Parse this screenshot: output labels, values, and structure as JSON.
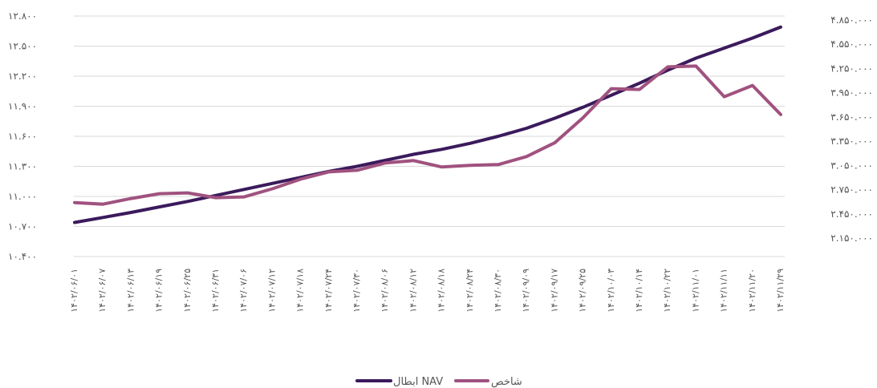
{
  "chart_data": {
    "type": "line",
    "title": "",
    "xlabel": "",
    "ylabel": "",
    "grid": true,
    "legend_placement": "bottom",
    "x": [
      "۱۴۰۲/۰۶/۰۱",
      "۱۴۰۲/۰۶/۰۷",
      "۱۴۰۲/۰۶/۱۳",
      "۱۴۰۲/۰۶/۱۹",
      "۱۴۰۲/۰۶/۲۵",
      "۱۴۰۲/۰۶/۳۱",
      "۱۴۰۲/۰۷/۰۶",
      "۱۴۰۲/۰۷/۱۲",
      "۱۴۰۲/۰۷/۱۸",
      "۱۴۰۲/۰۷/۲۴",
      "۱۴۰۲/۰۷/۳۰",
      "۱۴۰۲/۰۸/۰۶",
      "۱۴۰۲/۰۸/۱۲",
      "۱۴۰۲/۰۸/۱۸",
      "۱۴۰۲/۰۸/۲۴",
      "۱۴۰۲/۰۸/۳۰",
      "۱۴۰۲/۰۹/۰۹",
      "۱۴۰۲/۰۹/۱۷",
      "۱۴۰۲/۰۹/۲۵",
      "۱۴۰۲/۱۰/۰۳",
      "۱۴۰۲/۱۰/۱۴",
      "۱۴۰۲/۱۰/۲۲",
      "۱۴۰۲/۱۱/۰۱",
      "۱۴۰۲/۱۱/۱۱",
      "۱۴۰۲/۱۱/۲۰",
      "۱۴۰۲/۱۱/۲۹"
    ],
    "y_left": {
      "ticks": [
        "۱۰.۴۰۰",
        "۱۰.۷۰۰",
        "۱۱.۰۰۰",
        "۱۱.۳۰۰",
        "۱۱.۶۰۰",
        "۱۱.۹۰۰",
        "۱۲.۲۰۰",
        "۱۲.۵۰۰",
        "۱۲.۸۰۰"
      ],
      "range": [
        10400,
        12800
      ]
    },
    "y_right": {
      "ticks": [
        "۲.۱۵۰.۰۰۰",
        "۲.۴۵۰.۰۰۰",
        "۲.۷۵۰.۰۰۰",
        "۳.۰۵۰.۰۰۰",
        "۳.۳۵۰.۰۰۰",
        "۳.۶۵۰.۰۰۰",
        "۳.۹۵۰.۰۰۰",
        "۴.۲۵۰.۰۰۰",
        "۴.۵۵۰.۰۰۰",
        "۴.۸۵۰.۰۰۰"
      ],
      "range": [
        2150000,
        4850000
      ]
    },
    "series": [
      {
        "name": "ابطال NAV",
        "axis": "left",
        "color": "#3b1a5c",
        "values": [
          10740,
          10790,
          10840,
          10895,
          10950,
          11010,
          11070,
          11130,
          11190,
          11250,
          11300,
          11360,
          11420,
          11470,
          11530,
          11600,
          11680,
          11780,
          11890,
          12010,
          12130,
          12260,
          12380,
          12480,
          12580,
          12690
        ]
      },
      {
        "name": "شاخص",
        "axis": "right",
        "color": "#a0527f",
        "values": [
          2590000,
          2570000,
          2640000,
          2700000,
          2710000,
          2650000,
          2660000,
          2760000,
          2880000,
          2970000,
          2990000,
          3080000,
          3110000,
          3030000,
          3050000,
          3060000,
          3160000,
          3330000,
          3640000,
          4000000,
          3990000,
          4270000,
          4280000,
          3900000,
          4040000,
          3680000
        ]
      }
    ]
  }
}
